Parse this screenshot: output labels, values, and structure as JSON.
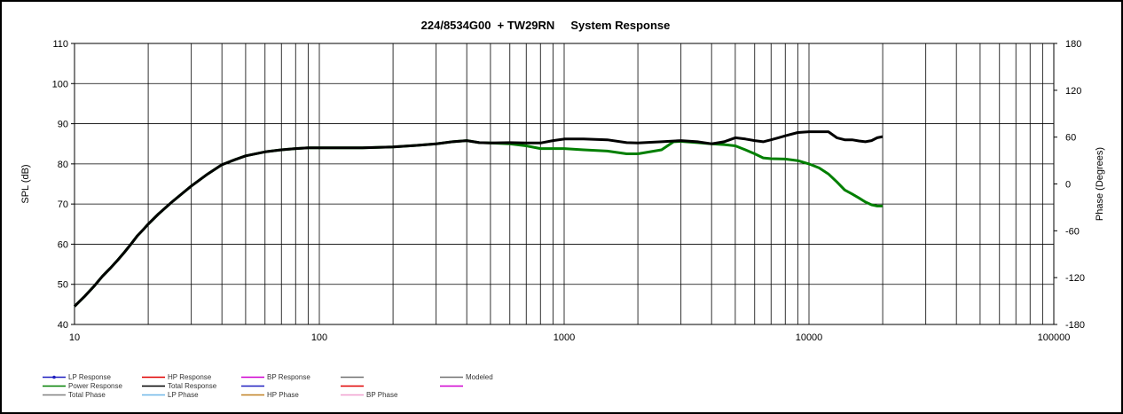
{
  "chart_data": {
    "type": "line",
    "title": "224/8534G00  + TW29RN     System Response",
    "xlabel": "",
    "ylabel": "SPL (dB)",
    "y2label": "Phase (Degrees)",
    "x_scale": "log",
    "xlim": [
      10,
      100000
    ],
    "ylim": [
      40,
      110
    ],
    "y2lim": [
      -180,
      180
    ],
    "grid": true,
    "x_ticks": [
      "10",
      "100",
      "1000",
      "10000",
      "100000"
    ],
    "y_ticks": [
      "40",
      "50",
      "60",
      "70",
      "80",
      "90",
      "100",
      "110"
    ],
    "y2_ticks": [
      "-180",
      "-120",
      "-60",
      "0",
      "60",
      "120",
      "180"
    ],
    "series": [
      {
        "name": "Total Response",
        "color": "#000000",
        "points": [
          [
            10,
            44.5
          ],
          [
            11,
            47
          ],
          [
            12,
            49.5
          ],
          [
            13,
            52
          ],
          [
            14,
            54
          ],
          [
            15,
            56
          ],
          [
            16,
            58
          ],
          [
            17,
            60
          ],
          [
            18,
            62
          ],
          [
            19,
            63.5
          ],
          [
            20,
            65
          ],
          [
            22,
            67.5
          ],
          [
            25,
            70.5
          ],
          [
            28,
            73
          ],
          [
            30,
            74.5
          ],
          [
            35,
            77.5
          ],
          [
            40,
            79.8
          ],
          [
            45,
            81
          ],
          [
            50,
            82
          ],
          [
            60,
            83
          ],
          [
            70,
            83.5
          ],
          [
            80,
            83.8
          ],
          [
            90,
            84
          ],
          [
            100,
            84
          ],
          [
            150,
            84
          ],
          [
            200,
            84.2
          ],
          [
            250,
            84.6
          ],
          [
            300,
            85
          ],
          [
            350,
            85.5
          ],
          [
            400,
            85.8
          ],
          [
            450,
            85.3
          ],
          [
            500,
            85.2
          ],
          [
            600,
            85.3
          ],
          [
            700,
            85.2
          ],
          [
            800,
            85.2
          ],
          [
            900,
            85.8
          ],
          [
            1000,
            86.2
          ],
          [
            1200,
            86.2
          ],
          [
            1500,
            86
          ],
          [
            1800,
            85.3
          ],
          [
            2000,
            85.2
          ],
          [
            2500,
            85.5
          ],
          [
            3000,
            85.8
          ],
          [
            3500,
            85.5
          ],
          [
            4000,
            85
          ],
          [
            4500,
            85.5
          ],
          [
            5000,
            86.5
          ],
          [
            5500,
            86.2
          ],
          [
            6000,
            85.8
          ],
          [
            6500,
            85.5
          ],
          [
            7000,
            86
          ],
          [
            7500,
            86.5
          ],
          [
            8000,
            87
          ],
          [
            9000,
            87.8
          ],
          [
            10000,
            88
          ],
          [
            11000,
            88
          ],
          [
            12000,
            88
          ],
          [
            13000,
            86.5
          ],
          [
            14000,
            86
          ],
          [
            15000,
            86
          ],
          [
            16000,
            85.7
          ],
          [
            17000,
            85.5
          ],
          [
            18000,
            85.8
          ],
          [
            19000,
            86.5
          ],
          [
            20000,
            86.8
          ]
        ]
      },
      {
        "name": "Power Response",
        "color": "#007f00",
        "points": [
          [
            10,
            44.5
          ],
          [
            11,
            47
          ],
          [
            12,
            49.5
          ],
          [
            13,
            52
          ],
          [
            14,
            54
          ],
          [
            15,
            56
          ],
          [
            16,
            58
          ],
          [
            17,
            60
          ],
          [
            18,
            62
          ],
          [
            19,
            63.5
          ],
          [
            20,
            65
          ],
          [
            22,
            67.5
          ],
          [
            25,
            70.5
          ],
          [
            28,
            73
          ],
          [
            30,
            74.5
          ],
          [
            35,
            77.5
          ],
          [
            40,
            79.8
          ],
          [
            45,
            81
          ],
          [
            50,
            82
          ],
          [
            60,
            83
          ],
          [
            70,
            83.5
          ],
          [
            80,
            83.8
          ],
          [
            90,
            84
          ],
          [
            100,
            84
          ],
          [
            150,
            84
          ],
          [
            200,
            84.2
          ],
          [
            250,
            84.6
          ],
          [
            300,
            85
          ],
          [
            350,
            85.5
          ],
          [
            400,
            85.8
          ],
          [
            450,
            85.3
          ],
          [
            500,
            85.2
          ],
          [
            600,
            85
          ],
          [
            700,
            84.5
          ],
          [
            800,
            83.8
          ],
          [
            900,
            83.8
          ],
          [
            1000,
            83.8
          ],
          [
            1200,
            83.5
          ],
          [
            1500,
            83.2
          ],
          [
            1800,
            82.5
          ],
          [
            2000,
            82.5
          ],
          [
            2500,
            83.5
          ],
          [
            2800,
            85.5
          ],
          [
            3000,
            85.6
          ],
          [
            3500,
            85.3
          ],
          [
            4000,
            85
          ],
          [
            4500,
            84.8
          ],
          [
            5000,
            84.5
          ],
          [
            5500,
            83.5
          ],
          [
            6000,
            82.5
          ],
          [
            6500,
            81.5
          ],
          [
            7000,
            81.3
          ],
          [
            8000,
            81.2
          ],
          [
            9000,
            80.8
          ],
          [
            10000,
            80
          ],
          [
            11000,
            79
          ],
          [
            12000,
            77.5
          ],
          [
            13000,
            75.5
          ],
          [
            14000,
            73.5
          ],
          [
            15000,
            72.5
          ],
          [
            16000,
            71.5
          ],
          [
            17000,
            70.5
          ],
          [
            18000,
            69.8
          ],
          [
            19000,
            69.5
          ],
          [
            20000,
            69.5
          ]
        ]
      }
    ],
    "legend": {
      "placement": "bottom",
      "items": [
        {
          "label": "LP Response",
          "color": "#1f1fbf",
          "marker": true
        },
        {
          "label": "HP Response",
          "color": "#e00000"
        },
        {
          "label": "BP Response",
          "color": "#d000d0"
        },
        {
          "label": "",
          "color": "#707070"
        },
        {
          "label": "Modeled",
          "color": "#707070"
        },
        {
          "label": "Power Response",
          "color": "#007f00"
        },
        {
          "label": "Total Response",
          "color": "#000000"
        },
        {
          "label": "",
          "color": "#1f1fbf"
        },
        {
          "label": "",
          "color": "#e00000"
        },
        {
          "label": "",
          "color": "#d000d0"
        },
        {
          "label": "Total Phase",
          "color": "#808080"
        },
        {
          "label": "LP Phase",
          "color": "#6fb7e8"
        },
        {
          "label": "HP Phase",
          "color": "#c08020"
        },
        {
          "label": "BP Phase",
          "color": "#f0a0d0"
        }
      ]
    }
  }
}
